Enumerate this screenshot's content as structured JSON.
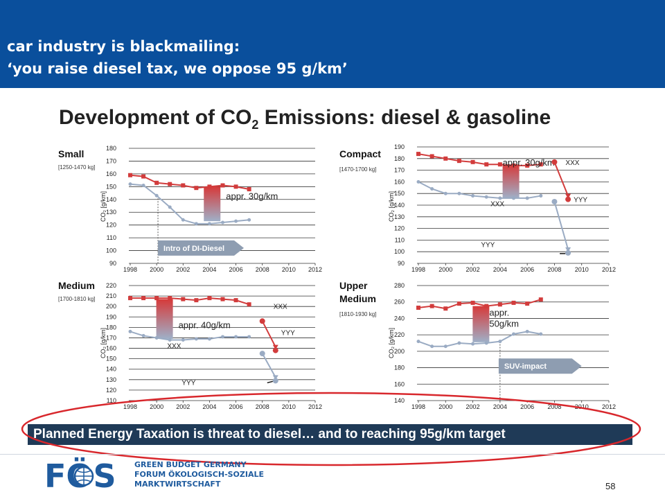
{
  "header": {
    "line1": "car industry is blackmailing:",
    "line2": "‘you raise diesel tax, we oppose 95 g/km’"
  },
  "figure_title": {
    "main": "Development of CO",
    "sub": "2",
    "rest": " Emissions: diesel & gasoline"
  },
  "banner": "Planned Energy Taxation is threat to diesel… and to reaching 95g/km target",
  "footer": {
    "logo_text": "FÖS",
    "org_lines": [
      "GREEN BUDGET GERMANY",
      "FORUM ÖKOLOGISCH-SOZIALE",
      "MARKTWIRTSCHAFT"
    ],
    "page_number": "58"
  },
  "colors": {
    "header_bg": "#0a4f9c",
    "diesel_grey": "#9aabc3",
    "gasoline_red": "#d23c3c",
    "banner_bg": "#1f3a57",
    "oval": "#d8272c",
    "callout": "#8e9db1"
  },
  "chart_data": [
    {
      "type": "line",
      "title": "Small",
      "weight_range": "[1250-1470 kg]",
      "ylabel": "CO₂ [g/km]",
      "xlim": [
        1998,
        2012
      ],
      "ylim": [
        90,
        180
      ],
      "x_ticks": [
        1998,
        2000,
        2002,
        2004,
        2006,
        2008,
        2010,
        2012
      ],
      "y_ticks": [
        90,
        100,
        110,
        120,
        130,
        140,
        150,
        160,
        170,
        180
      ],
      "series": [
        {
          "x": [
            1998,
            1999,
            2000,
            2001,
            2002,
            2003,
            2004,
            2005,
            2006,
            2007
          ],
          "values": [
            159,
            158,
            153,
            152,
            151,
            149,
            150,
            151,
            150,
            148
          ]
        },
        {
          "x": [
            1998,
            1999,
            2000,
            2001,
            2002,
            2003,
            2004,
            2005,
            2006,
            2007
          ],
          "values": [
            152,
            151,
            143,
            134,
            124,
            121,
            121,
            122,
            123,
            124
          ]
        }
      ],
      "gap_annotation": {
        "x": 2004.2,
        "from": 150,
        "to": 123,
        "label": "appr. 30g/km"
      },
      "callout": {
        "label": "Intro of DI-Diesel",
        "x_from": 2000.1,
        "x_to": 2006.6,
        "y": 102
      },
      "marker_line_x": 2000.1
    },
    {
      "type": "line",
      "title": "Compact",
      "weight_range": "[1470-1700 kg]",
      "ylabel": "CO₂ [g/km]",
      "xlim": [
        1998,
        2012
      ],
      "ylim": [
        90,
        190
      ],
      "x_ticks": [
        1998,
        2000,
        2002,
        2004,
        2006,
        2008,
        2010,
        2012
      ],
      "y_ticks": [
        90,
        100,
        110,
        120,
        130,
        140,
        150,
        160,
        170,
        180,
        190
      ],
      "series": [
        {
          "x": [
            1998,
            1999,
            2000,
            2001,
            2002,
            2003,
            2004,
            2005,
            2006,
            2007
          ],
          "values": [
            184,
            182,
            180,
            178,
            177,
            175,
            175,
            174,
            174,
            175
          ]
        },
        {
          "x": [
            1998,
            1999,
            2000,
            2001,
            2002,
            2003,
            2004,
            2005,
            2006,
            2007
          ],
          "values": [
            160,
            154,
            150,
            150,
            148,
            147,
            146,
            146,
            146,
            148
          ]
        }
      ],
      "gap_annotation": {
        "x": 2004.8,
        "from": 175,
        "to": 146,
        "label": "appr. 30g/km"
      },
      "projections": [
        {
          "from": [
            2008,
            177
          ],
          "to": [
            2009,
            145
          ],
          "color": "red",
          "label": "XXX",
          "label_to": "YYY"
        },
        {
          "from": [
            2008,
            143
          ],
          "to": [
            2009,
            99
          ],
          "color": "grey",
          "label": "XXX",
          "label_to": "YYY"
        }
      ]
    },
    {
      "type": "line",
      "title": "Medium",
      "weight_range": "[1700-1810 kg]",
      "ylabel": "CO₂ [g/km]",
      "xlim": [
        1998,
        2012
      ],
      "ylim": [
        110,
        220
      ],
      "x_ticks": [
        1998,
        2000,
        2002,
        2004,
        2006,
        2008,
        2010,
        2012
      ],
      "y_ticks": [
        110,
        120,
        130,
        140,
        150,
        160,
        170,
        180,
        190,
        200,
        210,
        220
      ],
      "series": [
        {
          "x": [
            1998,
            1999,
            2000,
            2001,
            2002,
            2003,
            2004,
            2005,
            2006,
            2007
          ],
          "values": [
            208,
            208,
            208,
            208,
            207,
            206,
            208,
            207,
            206,
            202
          ]
        },
        {
          "x": [
            1998,
            1999,
            2000,
            2001,
            2002,
            2003,
            2004,
            2005,
            2006,
            2007
          ],
          "values": [
            176,
            172,
            170,
            168,
            168,
            169,
            169,
            171,
            171,
            171
          ]
        }
      ],
      "gap_annotation": {
        "x": 2000.6,
        "from": 207,
        "to": 169,
        "label": "appr. 40g/km"
      },
      "projections": [
        {
          "from": [
            2008,
            186
          ],
          "to": [
            2009,
            158
          ],
          "color": "red",
          "label": "XXX",
          "label_to": "YYY"
        },
        {
          "from": [
            2008,
            155
          ],
          "to": [
            2009,
            129
          ],
          "color": "grey",
          "label": "XXX",
          "label_to": "YYY"
        }
      ]
    },
    {
      "type": "line",
      "title": "Upper Medium",
      "title_lines": [
        "Upper",
        "Medium"
      ],
      "weight_range": "[1810-1930 kg]",
      "ylabel": "CO₂ [g/km]",
      "xlim": [
        1998,
        2012
      ],
      "ylim": [
        140,
        280
      ],
      "x_ticks": [
        1998,
        2000,
        2002,
        2004,
        2006,
        2008,
        2010,
        2012
      ],
      "y_ticks": [
        140,
        160,
        180,
        200,
        220,
        240,
        260,
        280
      ],
      "series": [
        {
          "x": [
            1998,
            1999,
            2000,
            2001,
            2002,
            2003,
            2004,
            2005,
            2006,
            2007
          ],
          "values": [
            253,
            255,
            252,
            258,
            259,
            255,
            257,
            259,
            258,
            263
          ]
        },
        {
          "x": [
            1998,
            1999,
            2000,
            2001,
            2002,
            2003,
            2004,
            2005,
            2006,
            2007
          ],
          "values": [
            212,
            206,
            206,
            210,
            209,
            210,
            212,
            221,
            224,
            221
          ]
        }
      ],
      "gap_annotation": {
        "x": 2002.6,
        "from": 255,
        "to": 211,
        "label": "appr. 50g/km",
        "label_lines": [
          "appr.",
          "50g/km"
        ]
      },
      "callout": {
        "label": "SUV-impact",
        "x_from": 2003.9,
        "x_to": 2010.0,
        "y": 182
      },
      "marker_line_x": 2004.0
    }
  ]
}
